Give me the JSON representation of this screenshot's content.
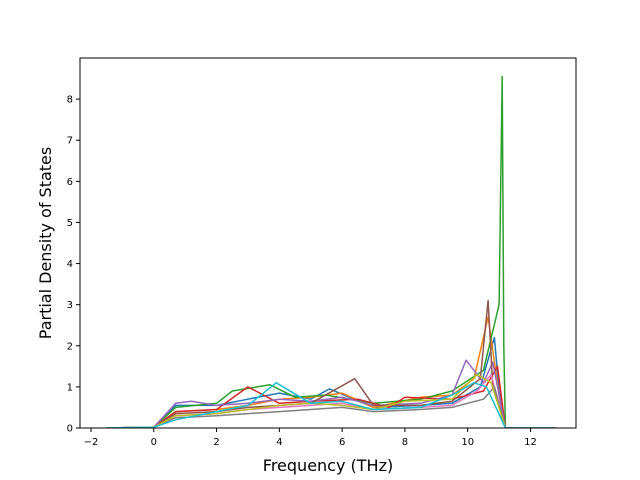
{
  "chart_data": {
    "type": "line",
    "title": "",
    "xlabel": "Frequency (THz)",
    "ylabel": "Partial Density of States",
    "xlim": [
      -2.35,
      13.45
    ],
    "ylim": [
      0,
      9.0
    ],
    "xticks": [
      -2,
      0,
      2,
      4,
      6,
      8,
      10,
      12
    ],
    "yticks": [
      0,
      1,
      2,
      3,
      4,
      5,
      6,
      7,
      8
    ],
    "grid": false,
    "legend": "none",
    "series_count": 10,
    "colors": [
      "#1f77b4",
      "#ff7f0e",
      "#2ca02c",
      "#d62728",
      "#9467bd",
      "#8c564b",
      "#e377c2",
      "#7f7f7f",
      "#bcbd22",
      "#17becf"
    ],
    "series": [
      {
        "x": [
          -1.5,
          0.0,
          0.7,
          2.0,
          3.0,
          4.0,
          5.0,
          5.6,
          7.0,
          8.5,
          9.5,
          10.4,
          10.85,
          11.0,
          11.2,
          12.8
        ],
        "y": [
          0,
          0.02,
          0.55,
          0.55,
          0.7,
          0.85,
          0.7,
          0.95,
          0.5,
          0.55,
          0.6,
          1.0,
          2.2,
          0.9,
          0,
          0
        ]
      },
      {
        "x": [
          -1.5,
          0.0,
          0.7,
          2.0,
          3.0,
          4.0,
          5.0,
          6.0,
          7.0,
          8.5,
          9.5,
          10.2,
          10.65,
          11.0,
          11.2,
          12.8
        ],
        "y": [
          0,
          0.02,
          0.4,
          0.45,
          0.55,
          0.7,
          0.75,
          0.85,
          0.5,
          0.75,
          0.8,
          1.2,
          2.7,
          0.8,
          0,
          0
        ]
      },
      {
        "x": [
          -1.5,
          0.0,
          0.7,
          2.0,
          2.5,
          3.7,
          4.5,
          5.5,
          7.0,
          8.5,
          9.5,
          10.5,
          11.0,
          11.1,
          11.15,
          11.2,
          12.8
        ],
        "y": [
          0,
          0.02,
          0.5,
          0.6,
          0.9,
          1.05,
          0.75,
          0.8,
          0.6,
          0.7,
          0.9,
          1.4,
          3.0,
          8.55,
          2.0,
          0,
          0
        ]
      },
      {
        "x": [
          -1.5,
          0.0,
          0.7,
          2.0,
          3.0,
          4.0,
          5.0,
          6.5,
          7.5,
          8.0,
          9.5,
          10.5,
          10.95,
          11.2,
          12.8
        ],
        "y": [
          0,
          0.02,
          0.4,
          0.45,
          1.0,
          0.6,
          0.65,
          0.7,
          0.5,
          0.75,
          0.7,
          0.9,
          1.5,
          0,
          0
        ]
      },
      {
        "x": [
          -1.5,
          0.0,
          0.7,
          1.2,
          2.0,
          3.0,
          4.0,
          5.0,
          6.0,
          7.0,
          8.5,
          9.5,
          9.95,
          10.5,
          10.8,
          11.2,
          12.8
        ],
        "y": [
          0,
          0.02,
          0.6,
          0.65,
          0.55,
          0.6,
          0.7,
          0.65,
          0.75,
          0.55,
          0.6,
          0.8,
          1.65,
          1.1,
          1.6,
          0,
          0
        ]
      },
      {
        "x": [
          -1.5,
          0.0,
          0.7,
          2.0,
          3.0,
          4.0,
          5.0,
          6.4,
          7.0,
          8.5,
          9.5,
          10.4,
          10.65,
          10.8,
          11.2,
          12.8
        ],
        "y": [
          0,
          0.02,
          0.35,
          0.4,
          0.5,
          0.55,
          0.6,
          1.2,
          0.55,
          0.55,
          0.65,
          1.2,
          3.1,
          1.0,
          0,
          0
        ]
      },
      {
        "x": [
          -1.5,
          0.0,
          0.7,
          2.0,
          3.0,
          4.0,
          5.0,
          6.0,
          7.0,
          8.5,
          9.5,
          10.3,
          10.75,
          11.2,
          12.8
        ],
        "y": [
          0,
          0.02,
          0.3,
          0.35,
          0.45,
          0.5,
          0.55,
          0.6,
          0.45,
          0.5,
          0.55,
          0.9,
          1.3,
          0,
          0
        ]
      },
      {
        "x": [
          -1.5,
          0.0,
          0.7,
          2.0,
          3.0,
          4.0,
          5.0,
          6.0,
          7.0,
          8.5,
          9.5,
          10.5,
          10.85,
          11.2,
          12.8
        ],
        "y": [
          0,
          0.02,
          0.25,
          0.3,
          0.35,
          0.4,
          0.45,
          0.5,
          0.4,
          0.45,
          0.5,
          0.7,
          1.0,
          0,
          0
        ]
      },
      {
        "x": [
          -1.5,
          0.0,
          0.7,
          2.0,
          3.0,
          4.0,
          5.0,
          6.0,
          7.0,
          8.0,
          9.5,
          10.3,
          10.75,
          11.2,
          12.8
        ],
        "y": [
          0,
          0.02,
          0.3,
          0.35,
          0.45,
          0.55,
          0.6,
          0.55,
          0.45,
          0.65,
          0.7,
          1.3,
          1.1,
          0,
          0
        ]
      },
      {
        "x": [
          -1.5,
          0.0,
          0.7,
          2.0,
          3.0,
          3.9,
          5.0,
          6.0,
          7.0,
          8.5,
          9.5,
          10.2,
          10.6,
          11.2,
          12.8
        ],
        "y": [
          0,
          0.02,
          0.2,
          0.4,
          0.55,
          1.1,
          0.6,
          0.65,
          0.45,
          0.5,
          0.8,
          1.1,
          1.0,
          0,
          0
        ]
      }
    ]
  }
}
